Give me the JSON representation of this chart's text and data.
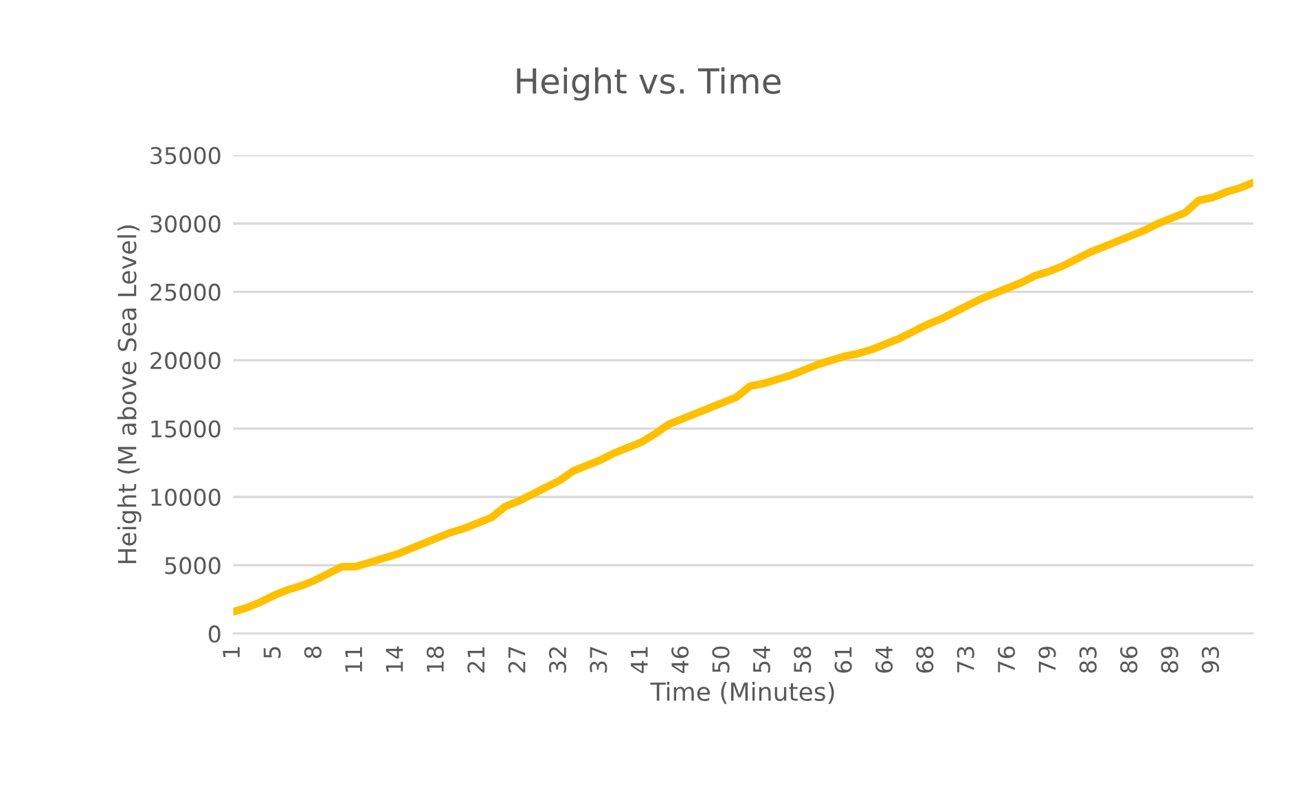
{
  "chart_data": {
    "type": "line",
    "title": "Height vs. Time",
    "xlabel": "Time (Minutes)",
    "ylabel": "Height (M above Sea Level)",
    "categories": [
      "1",
      null,
      null,
      "5",
      null,
      null,
      "8",
      null,
      null,
      "11",
      null,
      null,
      "14",
      null,
      null,
      "18",
      null,
      null,
      "21",
      null,
      null,
      "27",
      null,
      null,
      "32",
      null,
      null,
      "37",
      null,
      null,
      "41",
      null,
      null,
      "46",
      null,
      null,
      "50",
      null,
      null,
      "54",
      null,
      null,
      "58",
      null,
      null,
      "61",
      null,
      null,
      "64",
      null,
      null,
      "68",
      null,
      null,
      "73",
      null,
      null,
      "76",
      null,
      null,
      "79",
      null,
      null,
      "83",
      null,
      null,
      "86",
      null,
      null,
      "89",
      null,
      null,
      "93",
      null,
      null,
      null
    ],
    "series": [
      {
        "color": "#ffc000",
        "values": [
          1600,
          1900,
          2300,
          2800,
          3200,
          3500,
          3900,
          4400,
          4900,
          4900,
          5200,
          5500,
          5800,
          6200,
          6600,
          7000,
          7400,
          7700,
          8100,
          8500,
          9300,
          9700,
          10200,
          10700,
          11200,
          11900,
          12300,
          12700,
          13200,
          13600,
          14000,
          14600,
          15300,
          15700,
          16100,
          16500,
          16900,
          17300,
          18100,
          18300,
          18600,
          18900,
          19300,
          19700,
          20000,
          20300,
          20500,
          20800,
          21200,
          21600,
          22100,
          22600,
          23000,
          23500,
          24000,
          24500,
          24900,
          25300,
          25700,
          26200,
          26500,
          26900,
          27400,
          27900,
          28300,
          28700,
          29100,
          29500,
          30000,
          30400,
          30800,
          31700,
          31900,
          32300,
          32600,
          33000
        ]
      }
    ],
    "ylim": [
      0,
      35000
    ],
    "yticks": [
      0,
      5000,
      10000,
      15000,
      20000,
      25000,
      30000,
      35000
    ],
    "grid": "y",
    "legend": false,
    "marker": "none",
    "line_style": "solid"
  }
}
